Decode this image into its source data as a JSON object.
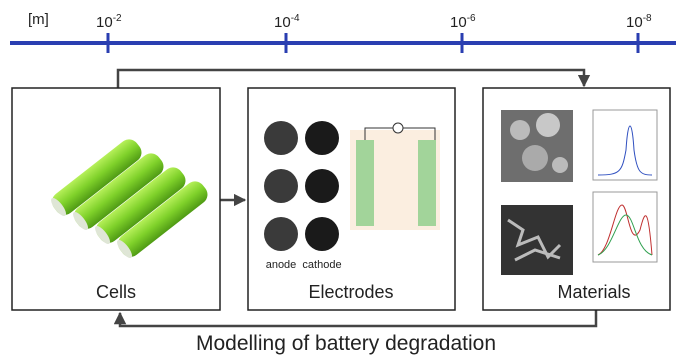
{
  "scale": {
    "unit": "[m]",
    "ticks": [
      {
        "base": "10",
        "exponent": "-2"
      },
      {
        "base": "10",
        "exponent": "-4"
      },
      {
        "base": "10",
        "exponent": "-6"
      },
      {
        "base": "10",
        "exponent": "-8"
      }
    ]
  },
  "boxes": [
    {
      "label": "Cells"
    },
    {
      "label": "Electrodes",
      "sublabels": [
        "anode",
        "cathode"
      ]
    },
    {
      "label": "Materials"
    }
  ],
  "caption": "Modelling of battery degradation"
}
